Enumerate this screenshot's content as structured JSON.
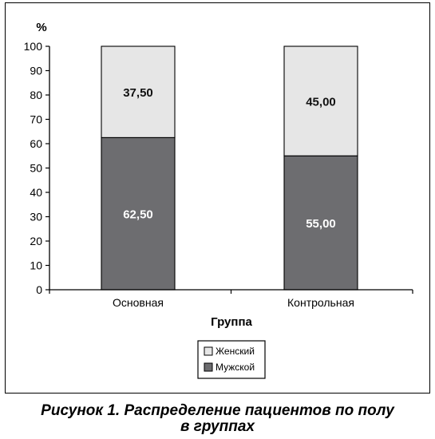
{
  "chart_data": {
    "type": "bar",
    "stacked": true,
    "y_unit_label": "%",
    "xlabel": "Группа",
    "categories": [
      "Основная",
      "Контрольная"
    ],
    "ylim": [
      0,
      100
    ],
    "yticks": [
      0,
      10,
      20,
      30,
      40,
      50,
      60,
      70,
      80,
      90,
      100
    ],
    "series": [
      {
        "name": "Мужской",
        "values": [
          62.5,
          55.0
        ],
        "labels": [
          "62,50",
          "55,00"
        ],
        "color": "#6d6d70",
        "label_color": "#ffffff"
      },
      {
        "name": "Женский",
        "values": [
          37.5,
          45.0
        ],
        "labels": [
          "37,50",
          "45,00"
        ],
        "color": "#e6e6e6",
        "label_color": "#111111"
      }
    ],
    "legend": {
      "placement": "bottom-center",
      "entries": [
        {
          "label": "Женский",
          "color": "#e6e6e6"
        },
        {
          "label": "Мужской",
          "color": "#6d6d70"
        }
      ]
    },
    "grid": false
  },
  "caption": {
    "line1": "Рисунок 1. Распределение пациентов по полу",
    "line2": "в группах"
  }
}
